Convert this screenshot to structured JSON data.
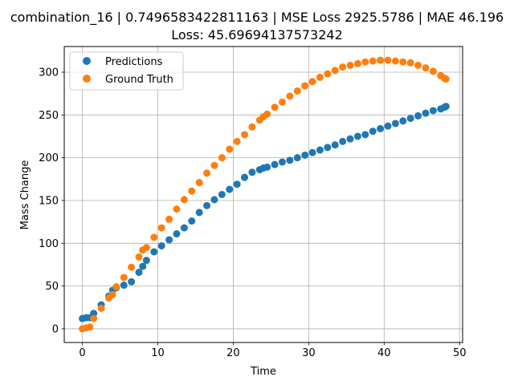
{
  "chart_data": {
    "type": "scatter",
    "title_line1": "combination_16 | 0.7496583422811163 | MSE Loss 2925.5786 | MAE 46.196",
    "title_line2": "Loss: 45.69694137573242",
    "xlabel": "Time",
    "ylabel": "Mass Change",
    "xlim": [
      -2.4,
      50.4
    ],
    "ylim": [
      -16.0,
      330.0
    ],
    "xticks": [
      0,
      10,
      20,
      30,
      40,
      50
    ],
    "yticks": [
      0,
      50,
      100,
      150,
      200,
      250,
      300
    ],
    "grid": true,
    "legend_position": "upper-left",
    "colors": {
      "Predictions": "#1f77b4",
      "Ground Truth": "#ff7f0e"
    },
    "series": [
      {
        "name": "Predictions",
        "points": [
          [
            0.0,
            12
          ],
          [
            0.5,
            13
          ],
          [
            1.0,
            13
          ],
          [
            1.5,
            18
          ],
          [
            2.5,
            28
          ],
          [
            3.5,
            38
          ],
          [
            4.0,
            45
          ],
          [
            4.5,
            48
          ],
          [
            5.5,
            51
          ],
          [
            6.5,
            55
          ],
          [
            7.5,
            66
          ],
          [
            8.0,
            73
          ],
          [
            8.5,
            80
          ],
          [
            9.5,
            90
          ],
          [
            10.5,
            97
          ],
          [
            11.5,
            104
          ],
          [
            12.5,
            111
          ],
          [
            13.5,
            118
          ],
          [
            14.5,
            126
          ],
          [
            15.5,
            136
          ],
          [
            16.5,
            144
          ],
          [
            17.5,
            151
          ],
          [
            18.5,
            157
          ],
          [
            19.5,
            163
          ],
          [
            20.5,
            169
          ],
          [
            21.5,
            177
          ],
          [
            22.5,
            183
          ],
          [
            23.5,
            186
          ],
          [
            24.0,
            188
          ],
          [
            24.5,
            189
          ],
          [
            25.5,
            192
          ],
          [
            26.5,
            195
          ],
          [
            27.5,
            197
          ],
          [
            28.5,
            200
          ],
          [
            29.5,
            203
          ],
          [
            30.5,
            206
          ],
          [
            31.5,
            209
          ],
          [
            32.5,
            212
          ],
          [
            33.5,
            215
          ],
          [
            34.5,
            219
          ],
          [
            35.5,
            222
          ],
          [
            36.5,
            225
          ],
          [
            37.5,
            227
          ],
          [
            38.5,
            231
          ],
          [
            39.5,
            234
          ],
          [
            40.5,
            237
          ],
          [
            41.5,
            240
          ],
          [
            42.5,
            243
          ],
          [
            43.5,
            246
          ],
          [
            44.5,
            249
          ],
          [
            45.5,
            252
          ],
          [
            46.5,
            255
          ],
          [
            47.5,
            257
          ],
          [
            48.0,
            259
          ],
          [
            48.2,
            260
          ]
        ]
      },
      {
        "name": "Ground Truth",
        "points": [
          [
            0.0,
            0
          ],
          [
            0.5,
            1
          ],
          [
            1.0,
            2
          ],
          [
            1.5,
            12
          ],
          [
            2.5,
            24
          ],
          [
            3.5,
            36
          ],
          [
            4.0,
            40
          ],
          [
            4.5,
            49
          ],
          [
            5.5,
            60
          ],
          [
            6.5,
            72
          ],
          [
            7.5,
            84
          ],
          [
            8.0,
            92
          ],
          [
            8.5,
            95
          ],
          [
            9.5,
            107
          ],
          [
            10.5,
            118
          ],
          [
            11.5,
            128
          ],
          [
            12.5,
            140
          ],
          [
            13.5,
            151
          ],
          [
            14.5,
            161
          ],
          [
            15.5,
            171
          ],
          [
            16.5,
            182
          ],
          [
            17.5,
            191
          ],
          [
            18.5,
            200
          ],
          [
            19.5,
            210
          ],
          [
            20.5,
            219
          ],
          [
            21.5,
            227
          ],
          [
            22.5,
            236
          ],
          [
            23.5,
            244
          ],
          [
            24.0,
            248
          ],
          [
            24.5,
            251
          ],
          [
            25.5,
            259
          ],
          [
            26.5,
            265
          ],
          [
            27.5,
            272
          ],
          [
            28.5,
            278
          ],
          [
            29.5,
            284
          ],
          [
            30.5,
            289
          ],
          [
            31.5,
            294
          ],
          [
            32.5,
            298
          ],
          [
            33.5,
            302
          ],
          [
            34.5,
            306
          ],
          [
            35.5,
            308
          ],
          [
            36.5,
            310
          ],
          [
            37.5,
            312
          ],
          [
            38.5,
            313
          ],
          [
            39.5,
            314
          ],
          [
            40.5,
            314
          ],
          [
            41.5,
            313
          ],
          [
            42.5,
            312
          ],
          [
            43.5,
            311
          ],
          [
            44.5,
            308
          ],
          [
            45.5,
            305
          ],
          [
            46.5,
            301
          ],
          [
            47.5,
            296
          ],
          [
            48.0,
            293
          ],
          [
            48.2,
            292
          ]
        ]
      }
    ]
  }
}
